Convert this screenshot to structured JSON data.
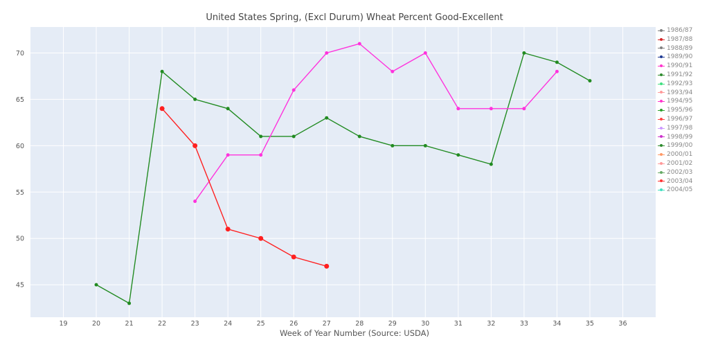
{
  "chart_data": {
    "type": "line",
    "title": "United States Spring, (Excl Durum) Wheat Percent Good-Excellent",
    "xlabel": "Week of Year Number     (Source: USDA)",
    "ylabel": "",
    "xlim": [
      18,
      37
    ],
    "ylim": [
      41.5,
      72.8
    ],
    "x_ticks": [
      19,
      20,
      21,
      22,
      23,
      24,
      25,
      26,
      27,
      28,
      29,
      30,
      31,
      32,
      33,
      34,
      35,
      36
    ],
    "y_ticks": [
      45,
      50,
      55,
      60,
      65,
      70
    ],
    "grid": true,
    "legend_position": "right",
    "legend_entries": [
      {
        "name": "1986/87",
        "color": "#7f7f7f"
      },
      {
        "name": "1987/88",
        "color": "#d62728"
      },
      {
        "name": "1988/89",
        "color": "#7f7f7f"
      },
      {
        "name": "1989/90",
        "color": "#1f3a93"
      },
      {
        "name": "1990/91",
        "color": "#ff33cc"
      },
      {
        "name": "1991/92",
        "color": "#2e8b2e"
      },
      {
        "name": "1992/93",
        "color": "#40e080"
      },
      {
        "name": "1993/94",
        "color": "#ff9999"
      },
      {
        "name": "1994/95",
        "color": "#ff33cc"
      },
      {
        "name": "1995/96",
        "color": "#2ca02c"
      },
      {
        "name": "1996/97",
        "color": "#ff4444"
      },
      {
        "name": "1997/98",
        "color": "#cc99ff"
      },
      {
        "name": "1998/99",
        "color": "#cc33cc"
      },
      {
        "name": "1999/00",
        "color": "#2e8b2e"
      },
      {
        "name": "2000/01",
        "color": "#ff9966"
      },
      {
        "name": "2001/02",
        "color": "#ff9999"
      },
      {
        "name": "2002/03",
        "color": "#66aa66"
      },
      {
        "name": "2003/04",
        "color": "#ff3333"
      },
      {
        "name": "2004/05",
        "color": "#40e0c0"
      }
    ],
    "series": [
      {
        "color": "#228b22",
        "marker_size": 2.5,
        "x": [
          20,
          21,
          22,
          23,
          24,
          25,
          26,
          27,
          28,
          29,
          30,
          31,
          32,
          33,
          34,
          35
        ],
        "y": [
          45,
          43,
          68,
          65,
          64,
          61,
          61,
          63,
          61,
          60,
          60,
          59,
          58,
          70,
          69,
          67
        ]
      },
      {
        "color": "#ff33dd",
        "marker_size": 2.5,
        "x": [
          23,
          24,
          25,
          26,
          27,
          28,
          29,
          30,
          31,
          32,
          33,
          34
        ],
        "y": [
          54,
          59,
          59,
          66,
          70,
          71,
          68,
          70,
          64,
          64,
          64,
          68
        ]
      },
      {
        "color": "#ff2020",
        "marker_size": 3.5,
        "x": [
          22,
          23,
          24,
          25,
          26,
          27
        ],
        "y": [
          64,
          60,
          51,
          50,
          48,
          47
        ]
      }
    ]
  }
}
